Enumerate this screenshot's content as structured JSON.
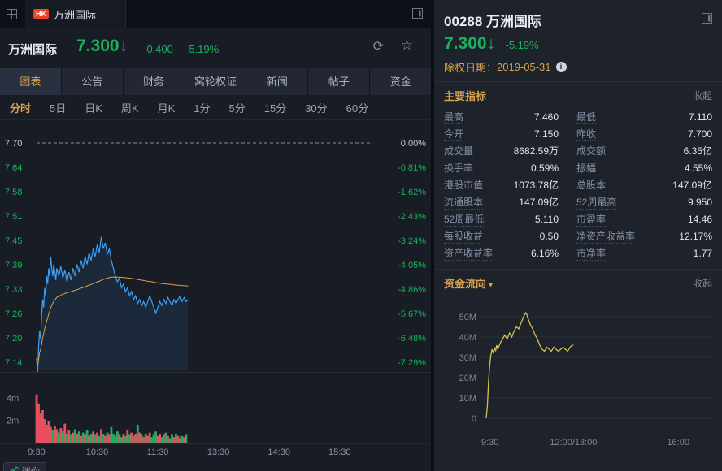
{
  "colors": {
    "down_green": "#17b35c",
    "accent_orange": "#d7a14a",
    "price_line_blue": "#3d9ff2",
    "avg_line_orange": "#e0a23e",
    "volume_up_red": "#e8505f",
    "volume_down_green": "#21ab61",
    "flow_line_yellow": "#d3c04a"
  },
  "icons": {
    "refresh": "⟳",
    "favorite": "☆",
    "caret_down": "▾",
    "info": "i"
  },
  "tab_bar": {
    "market_badge": "HK",
    "tab_label": "万洲国际"
  },
  "left_header": {
    "name": "万洲国际",
    "price": "7.300",
    "direction_arrow": "↓",
    "change": "-0.400",
    "change_pct": "-5.19%"
  },
  "nav_tabs": [
    "图表",
    "公告",
    "财务",
    "窝轮权证",
    "新闻",
    "帖子",
    "资金"
  ],
  "nav_active_index": 0,
  "period_tabs": [
    "分时",
    "5日",
    "日K",
    "周K",
    "月K",
    "1分",
    "5分",
    "15分",
    "30分",
    "60分"
  ],
  "period_active_index": 0,
  "bottom_bar": {
    "mini_label": "迷你"
  },
  "right_panel": {
    "code": "00288",
    "name": "万洲国际",
    "price": "7.300",
    "direction_arrow": "↓",
    "change_pct": "-5.19%",
    "ex_right_label": "除权日期：",
    "ex_right_date": "2019-05-31",
    "indicators_section": {
      "title": "主要指标",
      "collapse_label": "收起"
    },
    "indicators": [
      {
        "label": "最高",
        "value": "7.460"
      },
      {
        "label": "最低",
        "value": "7.110"
      },
      {
        "label": "今开",
        "value": "7.150"
      },
      {
        "label": "昨收",
        "value": "7.700"
      },
      {
        "label": "成交量",
        "value": "8682.59万"
      },
      {
        "label": "成交额",
        "value": "6.35亿"
      },
      {
        "label": "换手率",
        "value": "0.59%"
      },
      {
        "label": "振幅",
        "value": "4.55%"
      },
      {
        "label": "港股市值",
        "value": "1073.78亿"
      },
      {
        "label": "总股本",
        "value": "147.09亿"
      },
      {
        "label": "流通股本",
        "value": "147.09亿"
      },
      {
        "label": "52周最高",
        "value": "9.950"
      },
      {
        "label": "52周最低",
        "value": "5.110"
      },
      {
        "label": "市盈率",
        "value": "14.46"
      },
      {
        "label": "每股收益",
        "value": "0.50"
      },
      {
        "label": "净资产收益率",
        "value": "12.17%"
      },
      {
        "label": "资产收益率",
        "value": "6.16%"
      },
      {
        "label": "市净率",
        "value": "1.77"
      }
    ],
    "flow_section": {
      "title": "资金流向",
      "collapse_label": "收起"
    }
  },
  "chart_data": [
    {
      "type": "line",
      "name": "intraday-price",
      "prev_close": 7.7,
      "y_range": [
        7.14,
        7.7
      ],
      "y_axis_left": [
        "7.70",
        "7.64",
        "7.58",
        "7.51",
        "7.45",
        "7.39",
        "7.33",
        "7.26",
        "7.20",
        "7.14"
      ],
      "y_axis_right": [
        "0.00%",
        "-0.81%",
        "-1.62%",
        "-2.43%",
        "-3.24%",
        "-4.05%",
        "-4.86%",
        "-5.67%",
        "-6.48%",
        "-7.29%"
      ],
      "x_labels": [
        "9:30",
        "10:30",
        "11:30",
        "13:30",
        "14:30",
        "15:30"
      ],
      "x_label_minutes": [
        0,
        60,
        120,
        180,
        240,
        300
      ],
      "x_total_minutes": 330,
      "series": [
        {
          "name": "price",
          "points": [
            [
              0,
              7.15
            ],
            [
              1,
              7.11
            ],
            [
              2,
              7.18
            ],
            [
              3,
              7.22
            ],
            [
              4,
              7.2
            ],
            [
              5,
              7.26
            ],
            [
              6,
              7.3
            ],
            [
              7,
              7.28
            ],
            [
              8,
              7.33
            ],
            [
              9,
              7.31
            ],
            [
              10,
              7.36
            ],
            [
              11,
              7.34
            ],
            [
              12,
              7.38
            ],
            [
              13,
              7.36
            ],
            [
              14,
              7.41
            ],
            [
              15,
              7.38
            ],
            [
              16,
              7.36
            ],
            [
              17,
              7.39
            ],
            [
              18,
              7.37
            ],
            [
              19,
              7.35
            ],
            [
              20,
              7.38
            ],
            [
              22,
              7.36
            ],
            [
              24,
              7.385
            ],
            [
              26,
              7.355
            ],
            [
              28,
              7.375
            ],
            [
              30,
              7.345
            ],
            [
              32,
              7.37
            ],
            [
              34,
              7.35
            ],
            [
              36,
              7.38
            ],
            [
              38,
              7.36
            ],
            [
              40,
              7.39
            ],
            [
              42,
              7.37
            ],
            [
              44,
              7.4
            ],
            [
              46,
              7.38
            ],
            [
              48,
              7.41
            ],
            [
              50,
              7.39
            ],
            [
              52,
              7.42
            ],
            [
              54,
              7.4
            ],
            [
              56,
              7.43
            ],
            [
              58,
              7.41
            ],
            [
              60,
              7.44
            ],
            [
              62,
              7.42
            ],
            [
              64,
              7.46
            ],
            [
              66,
              7.43
            ],
            [
              68,
              7.445
            ],
            [
              70,
              7.415
            ],
            [
              72,
              7.43
            ],
            [
              74,
              7.4
            ],
            [
              76,
              7.38
            ],
            [
              78,
              7.36
            ],
            [
              80,
              7.345
            ],
            [
              82,
              7.355
            ],
            [
              84,
              7.33
            ],
            [
              86,
              7.34
            ],
            [
              88,
              7.32
            ],
            [
              90,
              7.33
            ],
            [
              92,
              7.31
            ],
            [
              94,
              7.32
            ],
            [
              96,
              7.3
            ],
            [
              98,
              7.31
            ],
            [
              100,
              7.29
            ],
            [
              102,
              7.3
            ],
            [
              104,
              7.285
            ],
            [
              106,
              7.295
            ],
            [
              108,
              7.28
            ],
            [
              110,
              7.295
            ],
            [
              112,
              7.31
            ],
            [
              114,
              7.295
            ],
            [
              116,
              7.28
            ],
            [
              118,
              7.265
            ],
            [
              120,
              7.28
            ],
            [
              122,
              7.295
            ],
            [
              124,
              7.285
            ],
            [
              126,
              7.3
            ],
            [
              128,
              7.29
            ],
            [
              130,
              7.305
            ],
            [
              132,
              7.295
            ],
            [
              134,
              7.285
            ],
            [
              136,
              7.3
            ],
            [
              138,
              7.29
            ],
            [
              140,
              7.3
            ],
            [
              142,
              7.31
            ],
            [
              144,
              7.295
            ],
            [
              146,
              7.305
            ],
            [
              148,
              7.295
            ],
            [
              150,
              7.3
            ]
          ]
        },
        {
          "name": "average",
          "derived": "running-mean"
        }
      ]
    },
    {
      "type": "bar",
      "name": "volume",
      "y_gridline_labels": [
        "4m",
        "2m"
      ],
      "y_max_millions": 4.5,
      "bar_interval_minutes": 2,
      "values_millions": [
        4.3,
        3.5,
        2.6,
        2.9,
        2.1,
        1.6,
        1.9,
        1.4,
        1.1,
        1.5,
        1.2,
        0.9,
        1.3,
        1.0,
        1.7,
        0.8,
        1.1,
        0.7,
        0.9,
        1.2,
        0.8,
        1.0,
        0.6,
        0.9,
        0.7,
        1.1,
        0.6,
        0.8,
        1.0,
        0.7,
        0.9,
        0.6,
        1.2,
        0.8,
        0.6,
        0.9,
        0.7,
        1.4,
        0.8,
        0.6,
        1.0,
        0.7,
        0.5,
        0.8,
        0.6,
        1.1,
        0.7,
        0.9,
        0.6,
        0.8,
        1.6,
        0.9,
        0.7,
        0.5,
        0.8,
        0.6,
        0.9,
        0.5,
        0.7,
        1.0,
        0.6,
        0.8,
        0.5,
        0.7,
        0.9,
        0.6,
        0.4,
        0.7,
        0.5,
        0.8,
        0.6,
        0.4,
        0.6,
        0.5,
        0.7
      ]
    },
    {
      "type": "line",
      "name": "capital-flow",
      "y_labels": [
        "50M",
        "40M",
        "30M",
        "20M",
        "10M",
        "0"
      ],
      "y_range_millions": [
        0,
        50
      ],
      "x_labels": [
        "9:30",
        "12:00/13:00",
        "16:00"
      ],
      "x_label_minutes": [
        0,
        150,
        330
      ],
      "x_total_minutes": 330,
      "points": [
        [
          0,
          0
        ],
        [
          2,
          6
        ],
        [
          4,
          18
        ],
        [
          6,
          26
        ],
        [
          8,
          31
        ],
        [
          10,
          34
        ],
        [
          12,
          32
        ],
        [
          14,
          35
        ],
        [
          16,
          33
        ],
        [
          18,
          36
        ],
        [
          20,
          34
        ],
        [
          24,
          37
        ],
        [
          28,
          39
        ],
        [
          32,
          41
        ],
        [
          36,
          39
        ],
        [
          40,
          42
        ],
        [
          44,
          40
        ],
        [
          48,
          43
        ],
        [
          52,
          45
        ],
        [
          56,
          44
        ],
        [
          60,
          47
        ],
        [
          64,
          50
        ],
        [
          68,
          52
        ],
        [
          70,
          51
        ],
        [
          72,
          49
        ],
        [
          76,
          46
        ],
        [
          80,
          44
        ],
        [
          84,
          41
        ],
        [
          88,
          39
        ],
        [
          92,
          36
        ],
        [
          96,
          34
        ],
        [
          100,
          33
        ],
        [
          104,
          35
        ],
        [
          108,
          34
        ],
        [
          112,
          33
        ],
        [
          116,
          35
        ],
        [
          120,
          34
        ],
        [
          124,
          33
        ],
        [
          128,
          34
        ],
        [
          132,
          35
        ],
        [
          136,
          34
        ],
        [
          140,
          33
        ],
        [
          144,
          35
        ],
        [
          148,
          36
        ],
        [
          150,
          36
        ]
      ]
    }
  ]
}
